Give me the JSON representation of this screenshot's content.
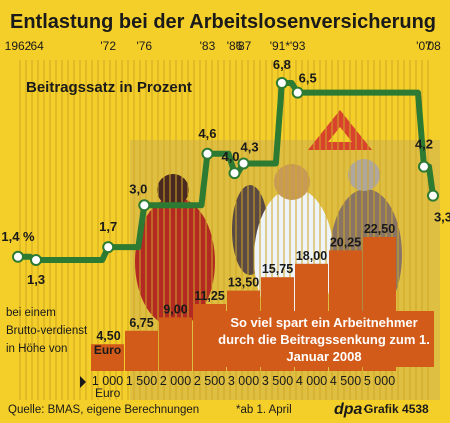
{
  "title": "Entlastung bei der Arbeitslosenversicherung",
  "footer": {
    "source": "Quelle: BMAS, eigene Berechnungen",
    "note": "*ab 1. April",
    "credit_brand": "dpa",
    "credit_text": "Grafik 4538"
  },
  "colors": {
    "background": "#f4cf2a",
    "line": "#2d7a32",
    "bars": "#d35b19",
    "bar_text": "#ffffff",
    "text": "#1a1a1a",
    "photo": "#7a5a4a"
  },
  "photo_description_icon": "people-photo",
  "chart_data": [
    {
      "type": "line",
      "title": "Beitragssatz in Prozent",
      "x_ticks": [
        "1962",
        "'64",
        "'72",
        "'76",
        "'83",
        "'86",
        "'87",
        "'91*",
        "'93",
        "'07",
        "'08"
      ],
      "x": [
        1962,
        1964,
        1972,
        1976,
        1983,
        1986,
        1987,
        1991.25,
        1993,
        2007,
        2008
      ],
      "y": [
        1.4,
        1.3,
        1.7,
        3.0,
        4.6,
        4.0,
        4.3,
        6.8,
        6.5,
        4.2,
        3.3
      ],
      "labels": [
        "1,4 %",
        "1,3",
        "1,7",
        "3,0",
        "4,6",
        "4,0",
        "4,3",
        "6,8",
        "6,5",
        "4,2",
        "3,3"
      ],
      "xlim": [
        1962,
        2008
      ],
      "step": true,
      "grid": true,
      "legend": "none"
    },
    {
      "type": "bar",
      "title": "So viel spart ein Arbeitnehmer durch die Beitragssenkung zum 1. Januar 2008",
      "xlabel": "bei einem Brutto-verdienst in Höhe von",
      "categories": [
        "1 000",
        "1 500",
        "2 000",
        "2 500",
        "3 000",
        "3 500",
        "4 000",
        "4 500",
        "5 000"
      ],
      "category_unit": "Euro",
      "values": [
        4.5,
        6.75,
        9.0,
        11.25,
        13.5,
        15.75,
        18.0,
        20.25,
        22.5
      ],
      "value_labels": [
        "4,50",
        "6,75",
        "9,00",
        "11,25",
        "13,50",
        "15,75",
        "18,00",
        "20,25",
        "22,50"
      ],
      "value_unit": "Euro"
    }
  ]
}
